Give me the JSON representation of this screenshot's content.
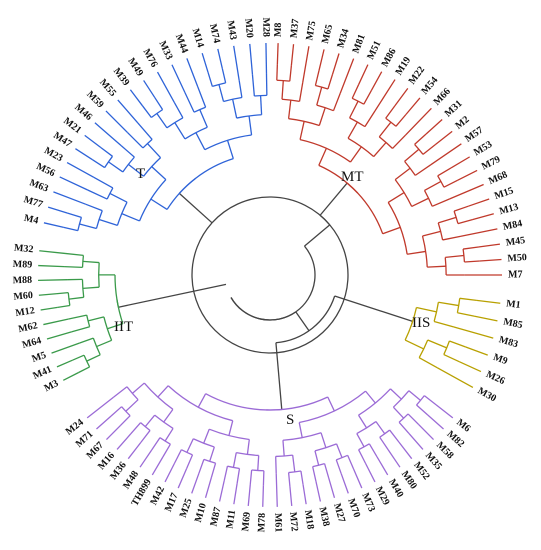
{
  "clade_labels": {
    "MT": "MT",
    "IIS": "IIS",
    "S": "S",
    "IIT": "IIT",
    "T": "T"
  },
  "colors": {
    "MT": "#c0392b",
    "IIS": "#b8a000",
    "S": "#9b6bd6",
    "IIT": "#3a9a4a",
    "T": "#2e63d8",
    "backbone": "#444444"
  },
  "clades": [
    {
      "name": "MT",
      "leaves": [
        "M8",
        "M37",
        "M75",
        "M65",
        "M34",
        "M81",
        "M51",
        "M86",
        "M19",
        "M22",
        "M54",
        "M66",
        "M31",
        "M2",
        "M57",
        "M53",
        "M79",
        "M68",
        "M15",
        "M13",
        "M84",
        "M45",
        "M50",
        "M7"
      ]
    },
    {
      "name": "IIS",
      "leaves": [
        "M1",
        "M85",
        "M83",
        "M9",
        "M26",
        "M30"
      ]
    },
    {
      "name": "S",
      "leaves": [
        "M6",
        "M82",
        "M58",
        "M35",
        "M52",
        "M80",
        "M40",
        "M29",
        "M73",
        "M70",
        "M27",
        "M38",
        "M18",
        "M72",
        "M61",
        "M78",
        "M69",
        "M11",
        "M87",
        "M10",
        "M25",
        "M17",
        "M42",
        "TH899",
        "M48",
        "M36",
        "M16",
        "M67",
        "M71",
        "M24"
      ]
    },
    {
      "name": "IIT",
      "leaves": [
        "M3",
        "M41",
        "M5",
        "M64",
        "M62",
        "M12",
        "M60",
        "M88",
        "M89",
        "M32"
      ]
    },
    {
      "name": "T",
      "leaves": [
        "M4",
        "M77",
        "M63",
        "M56",
        "M23",
        "M47",
        "M21",
        "M46",
        "M59",
        "M55",
        "M39",
        "M49",
        "M76",
        "M33",
        "M44",
        "M14",
        "M74",
        "M43",
        "M20",
        "M28"
      ]
    }
  ]
}
